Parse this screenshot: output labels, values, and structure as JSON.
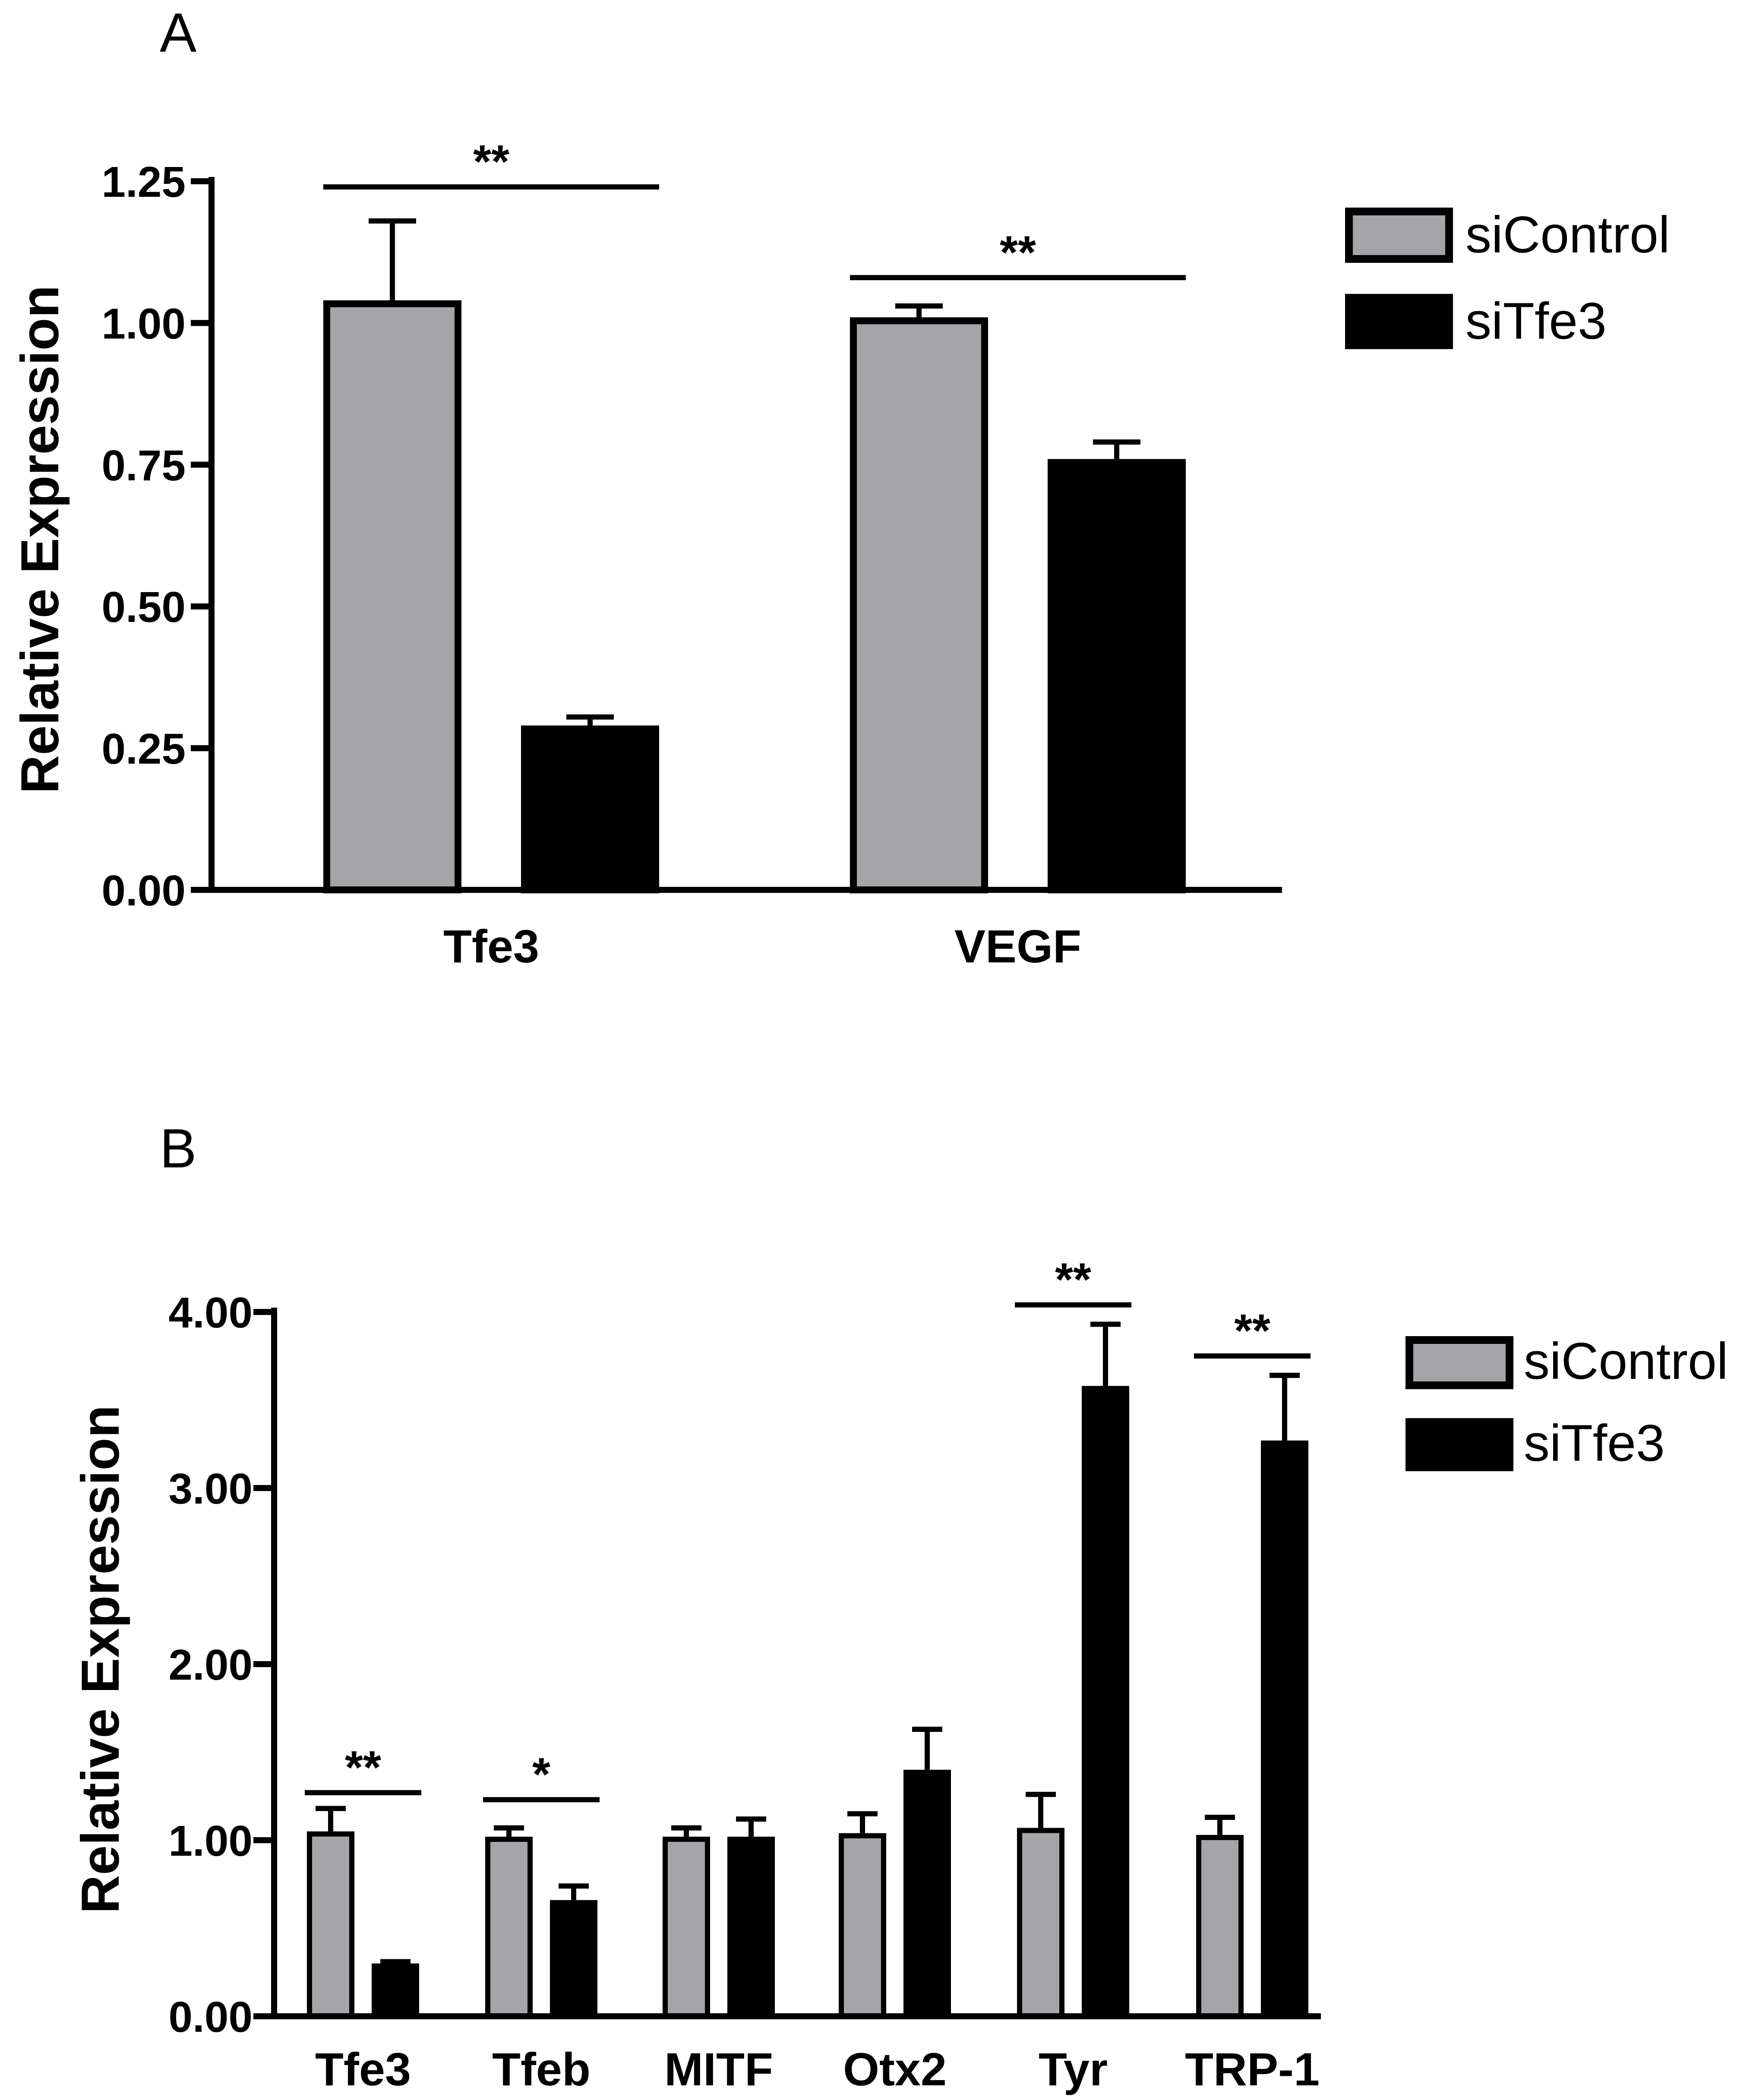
{
  "colors": {
    "siControl": "#a5a4a8",
    "siTfe3": "#000000",
    "axis": "#000000"
  },
  "chart_data": [
    {
      "panel": "A",
      "type": "bar",
      "ylabel": "Relative Expression",
      "xlabel": "",
      "ylim": [
        0,
        1.25
      ],
      "yticks": [
        "0.00",
        "0.25",
        "0.50",
        "0.75",
        "1.00",
        "1.25"
      ],
      "ytick_values": [
        0,
        0.25,
        0.5,
        0.75,
        1.0,
        1.25
      ],
      "categories": [
        "Tfe3",
        "VEGF"
      ],
      "series": [
        {
          "name": "siControl",
          "values": [
            1.04,
            1.01
          ],
          "errors": [
            0.14,
            0.02
          ]
        },
        {
          "name": "siTfe3",
          "values": [
            0.29,
            0.76
          ],
          "errors": [
            0.015,
            0.03
          ]
        }
      ],
      "significance": [
        {
          "category": "Tfe3",
          "label": "**",
          "y": 1.24
        },
        {
          "category": "VEGF",
          "label": "**",
          "y": 1.08
        }
      ],
      "legend": {
        "position": "top-right",
        "entries": [
          "siControl",
          "siTfe3"
        ]
      }
    },
    {
      "panel": "B",
      "type": "bar",
      "ylabel": "Relative Expression",
      "xlabel": "",
      "ylim": [
        0,
        4.0
      ],
      "yticks": [
        "0.00",
        "1.00",
        "2.00",
        "3.00",
        "4.00"
      ],
      "ytick_values": [
        0,
        1,
        2,
        3,
        4
      ],
      "categories": [
        "Tfe3",
        "Tfeb",
        "MITF",
        "Otx2",
        "Tyr",
        "TRP-1"
      ],
      "series": [
        {
          "name": "siControl",
          "values": [
            1.05,
            1.02,
            1.02,
            1.04,
            1.07,
            1.03
          ],
          "errors": [
            0.13,
            0.05,
            0.05,
            0.11,
            0.19,
            0.1
          ]
        },
        {
          "name": "siTfe3",
          "values": [
            0.3,
            0.66,
            1.02,
            1.4,
            3.58,
            3.27
          ],
          "errors": [
            0.01,
            0.08,
            0.1,
            0.23,
            0.35,
            0.37
          ]
        }
      ],
      "significance": [
        {
          "category": "Tfe3",
          "label": "**",
          "y": 1.27
        },
        {
          "category": "Tfeb",
          "label": "*",
          "y": 1.23
        },
        {
          "category": "Tyr",
          "label": "**",
          "y": 4.04
        },
        {
          "category": "TRP-1",
          "label": "**",
          "y": 3.75
        }
      ],
      "legend": {
        "position": "top-right",
        "entries": [
          "siControl",
          "siTfe3"
        ]
      }
    }
  ]
}
